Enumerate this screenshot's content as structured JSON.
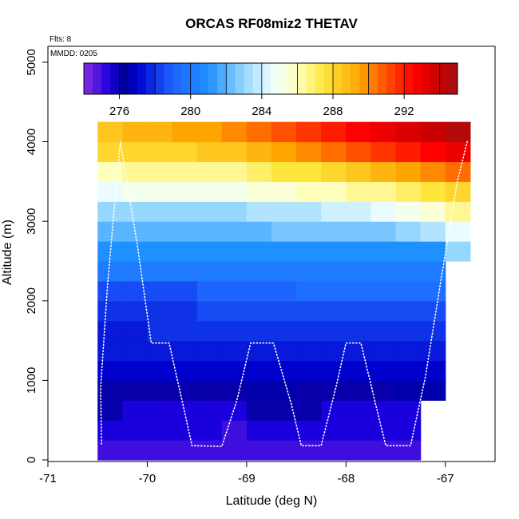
{
  "chart_data": {
    "type": "heatmap",
    "title": "ORCAS RF08miz2 THETAV",
    "xlabel": "Latitude (deg N)",
    "ylabel": "Altitude (m)",
    "annotations": {
      "flights": "Flts: 8",
      "date": "MMDD: 0205"
    },
    "xlim": [
      -71,
      -66.5
    ],
    "ylim": [
      0,
      5200
    ],
    "x_ticks": [
      -71,
      -70,
      -69,
      -68,
      -67
    ],
    "y_ticks": [
      0,
      1000,
      2000,
      3000,
      4000,
      5000
    ],
    "colorbar": {
      "min": 274,
      "max": 295,
      "step": 0.5,
      "tick_values": [
        276,
        280,
        284,
        288,
        292
      ],
      "tick_labels": [
        "276",
        "280",
        "284",
        "288",
        "292"
      ]
    },
    "lat_bins": [
      -70.5,
      -70.25,
      -70.0,
      -69.75,
      -69.5,
      -69.25,
      -69.0,
      -68.75,
      -68.5,
      -68.25,
      -68.0,
      -67.75,
      -67.5,
      -67.25,
      -67.0,
      -66.75
    ],
    "alt_bin_m": 250,
    "theta_v": [
      [
        275.0,
        275.0,
        275.0,
        275.0,
        275.0,
        275.0,
        275.0,
        275.0,
        275.0,
        275.0,
        275.0,
        275.0,
        275.0,
        null,
        null
      ],
      [
        275.5,
        275.5,
        275.5,
        275.5,
        275.5,
        275.0,
        275.5,
        275.5,
        275.5,
        275.5,
        275.5,
        275.5,
        275.5,
        null,
        null
      ],
      [
        276.0,
        275.5,
        275.5,
        275.5,
        275.5,
        275.5,
        276.0,
        276.0,
        276.0,
        275.5,
        275.5,
        275.5,
        275.5,
        null,
        null
      ],
      [
        276.0,
        276.0,
        276.0,
        276.0,
        276.0,
        276.0,
        276.5,
        276.5,
        276.0,
        276.0,
        276.0,
        276.0,
        276.5,
        276.5,
        null
      ],
      [
        277.0,
        277.0,
        277.0,
        277.0,
        277.0,
        277.0,
        277.0,
        277.0,
        277.0,
        277.0,
        277.0,
        277.0,
        277.0,
        277.0,
        null
      ],
      [
        277.5,
        277.5,
        277.5,
        277.5,
        277.5,
        277.5,
        277.5,
        277.5,
        277.5,
        277.5,
        277.5,
        277.5,
        277.5,
        277.5,
        null
      ],
      [
        277.5,
        277.5,
        278.0,
        278.0,
        278.0,
        278.0,
        278.0,
        278.0,
        278.0,
        278.0,
        278.0,
        278.0,
        278.0,
        278.0,
        null
      ],
      [
        278.0,
        278.0,
        278.0,
        278.0,
        278.5,
        278.5,
        278.5,
        278.5,
        278.5,
        278.5,
        278.5,
        278.5,
        278.5,
        278.5,
        null
      ],
      [
        278.5,
        278.5,
        278.5,
        278.5,
        279.0,
        279.0,
        279.0,
        279.0,
        279.5,
        279.5,
        279.5,
        279.5,
        279.5,
        279.5,
        null
      ],
      [
        280.0,
        280.0,
        280.0,
        280.0,
        280.0,
        280.0,
        280.0,
        280.0,
        280.0,
        280.0,
        280.0,
        280.0,
        280.0,
        280.0,
        null
      ],
      [
        281.0,
        281.0,
        281.0,
        281.0,
        281.0,
        281.0,
        281.0,
        281.0,
        281.0,
        281.0,
        281.0,
        281.0,
        281.0,
        281.0,
        283.0
      ],
      [
        282.0,
        282.0,
        282.0,
        282.0,
        282.0,
        282.0,
        282.0,
        282.5,
        282.5,
        282.5,
        282.5,
        282.5,
        283.0,
        283.5,
        284.5
      ],
      [
        283.0,
        283.0,
        283.0,
        283.0,
        283.0,
        283.0,
        283.5,
        283.5,
        283.5,
        284.0,
        284.0,
        284.5,
        285.0,
        285.5,
        286.5
      ],
      [
        284.5,
        285.0,
        285.0,
        285.0,
        285.0,
        285.0,
        285.5,
        285.5,
        286.0,
        286.0,
        286.5,
        286.5,
        287.0,
        287.5,
        288.0
      ],
      [
        286.0,
        286.5,
        286.5,
        286.5,
        286.5,
        286.5,
        287.0,
        287.5,
        287.5,
        288.0,
        288.5,
        289.0,
        289.5,
        290.0,
        290.5
      ],
      [
        288.0,
        288.0,
        288.0,
        288.0,
        288.5,
        288.5,
        289.0,
        289.5,
        290.0,
        290.5,
        291.0,
        291.5,
        292.0,
        292.5,
        293.0
      ],
      [
        288.5,
        289.0,
        289.0,
        289.5,
        289.5,
        290.0,
        290.5,
        291.0,
        291.5,
        292.0,
        292.5,
        293.0,
        293.5,
        294.0,
        294.5
      ]
    ],
    "flight_track_alt_m": [
      [
        -70.46,
        200
      ],
      [
        -70.47,
        900
      ],
      [
        -70.4,
        2200
      ],
      [
        -70.33,
        3200
      ],
      [
        -70.27,
        4000
      ],
      [
        -70.1,
        2700
      ],
      [
        -69.96,
        1470
      ],
      [
        -69.78,
        1470
      ],
      [
        -69.62,
        580
      ],
      [
        -69.55,
        180
      ],
      [
        -69.25,
        170
      ],
      [
        -69.1,
        740
      ],
      [
        -68.96,
        1470
      ],
      [
        -68.73,
        1470
      ],
      [
        -68.55,
        700
      ],
      [
        -68.45,
        180
      ],
      [
        -68.25,
        180
      ],
      [
        -68.1,
        920
      ],
      [
        -68.0,
        1470
      ],
      [
        -67.85,
        1470
      ],
      [
        -67.7,
        690
      ],
      [
        -67.6,
        180
      ],
      [
        -67.35,
        180
      ],
      [
        -67.2,
        1050
      ],
      [
        -67.05,
        2220
      ],
      [
        -66.88,
        3500
      ],
      [
        -66.78,
        4000
      ]
    ]
  }
}
